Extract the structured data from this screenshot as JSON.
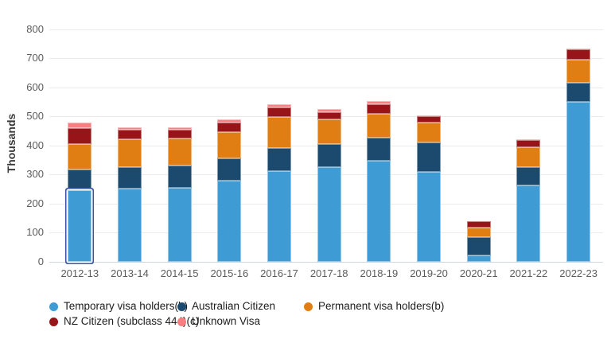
{
  "chart_data": {
    "type": "bar",
    "stacked": true,
    "title": "",
    "ylabel": "Thousands",
    "xlabel": "",
    "ylim": [
      0,
      800
    ],
    "yticks": [
      0,
      100,
      200,
      300,
      400,
      500,
      600,
      700,
      800
    ],
    "grid": "horizontal",
    "legend_position": "bottom",
    "categories": [
      "2012-13",
      "2013-14",
      "2014-15",
      "2015-16",
      "2016-17",
      "2017-18",
      "2018-19",
      "2019-20",
      "2020-21",
      "2021-22",
      "2022-23"
    ],
    "series": [
      {
        "name": "Temporary visa holders(b)",
        "color": "#3f9bd3",
        "values": [
          245,
          250,
          255,
          278,
          312,
          324,
          347,
          310,
          21,
          261,
          551
        ]
      },
      {
        "name": "Australian Citizen",
        "color": "#1b4a6e",
        "values": [
          71,
          76,
          76,
          78,
          80,
          80,
          81,
          99,
          63,
          64,
          65
        ]
      },
      {
        "name": "Permanent visa holders(b)",
        "color": "#e07e13",
        "values": [
          90,
          96,
          92,
          89,
          107,
          85,
          82,
          70,
          33,
          69,
          79
        ]
      },
      {
        "name": "NZ Citizen (subclass 444)(c)",
        "color": "#971419",
        "values": [
          53,
          33,
          30,
          34,
          33,
          27,
          33,
          23,
          22,
          25,
          37
        ]
      },
      {
        "name": "Unknown Visa",
        "color": "#f97e81",
        "values": [
          20,
          8,
          9,
          10,
          11,
          9,
          9,
          1,
          1,
          1,
          1
        ]
      }
    ],
    "highlight": {
      "category": "2012-13",
      "series": "Temporary visa holders(b)"
    }
  },
  "colors": {
    "background": "#ffffff",
    "gridline": "#ebebeb",
    "axis_line": "#ccd6eb",
    "tick_label": "#5c5c5c",
    "legend_text": "#1c1c1c",
    "highlight_ring": "#3b55a3"
  }
}
